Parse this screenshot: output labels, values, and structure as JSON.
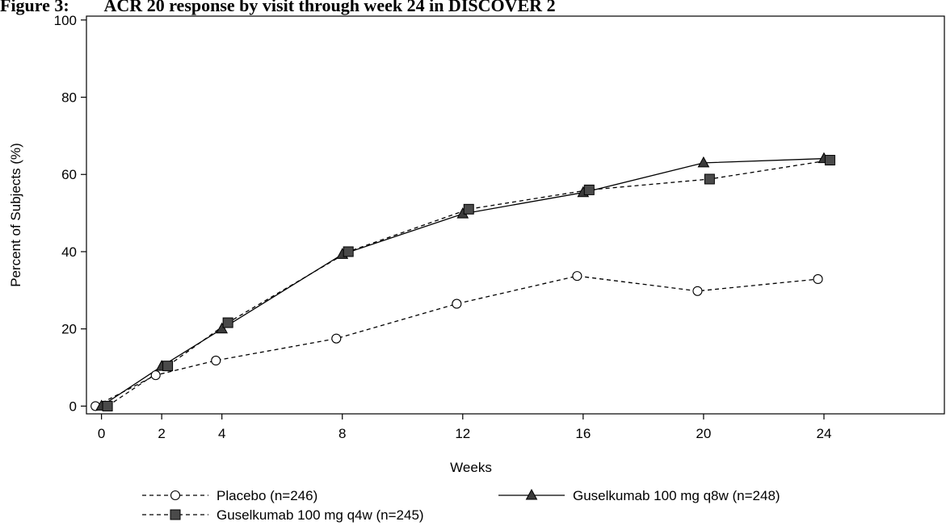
{
  "figure_title": "Figure 3:        ACR 20 response by visit through week 24 in DISCOVER 2",
  "chart_data": {
    "type": "line",
    "xlabel": "Weeks",
    "ylabel": "Percent of Subjects (%)",
    "xlim": [
      -0.5,
      28
    ],
    "ylim": [
      -2,
      101
    ],
    "xticks": [
      0,
      2,
      4,
      8,
      12,
      16,
      20,
      24
    ],
    "yticks": [
      0,
      20,
      40,
      60,
      80,
      100
    ],
    "grid": false,
    "legend_position": "bottom",
    "series": [
      {
        "name": "Placebo (n=246)",
        "marker": "circle",
        "line": "dashed",
        "x": [
          -0.2,
          1.8,
          3.8,
          7.8,
          11.8,
          15.8,
          19.8,
          23.8
        ],
        "y": [
          0,
          8,
          11.8,
          17.5,
          26.5,
          33.7,
          29.8,
          32.9
        ]
      },
      {
        "name": "Guselkumab 100 mg q8w (n=248)",
        "marker": "triangle",
        "line": "solid",
        "x": [
          0,
          2,
          4,
          8,
          12,
          16,
          20,
          24
        ],
        "y": [
          0,
          10.3,
          20,
          39.3,
          49.8,
          55.3,
          63,
          64.1
        ]
      },
      {
        "name": "Guselkumab 100 mg q4w (n=245)",
        "marker": "square",
        "line": "dashed",
        "x": [
          0.2,
          2.2,
          4.2,
          8.2,
          12.2,
          16.2,
          20.2,
          24.2
        ],
        "y": [
          0,
          10.4,
          21.6,
          40,
          51,
          56,
          58.8,
          63.7
        ]
      }
    ]
  }
}
